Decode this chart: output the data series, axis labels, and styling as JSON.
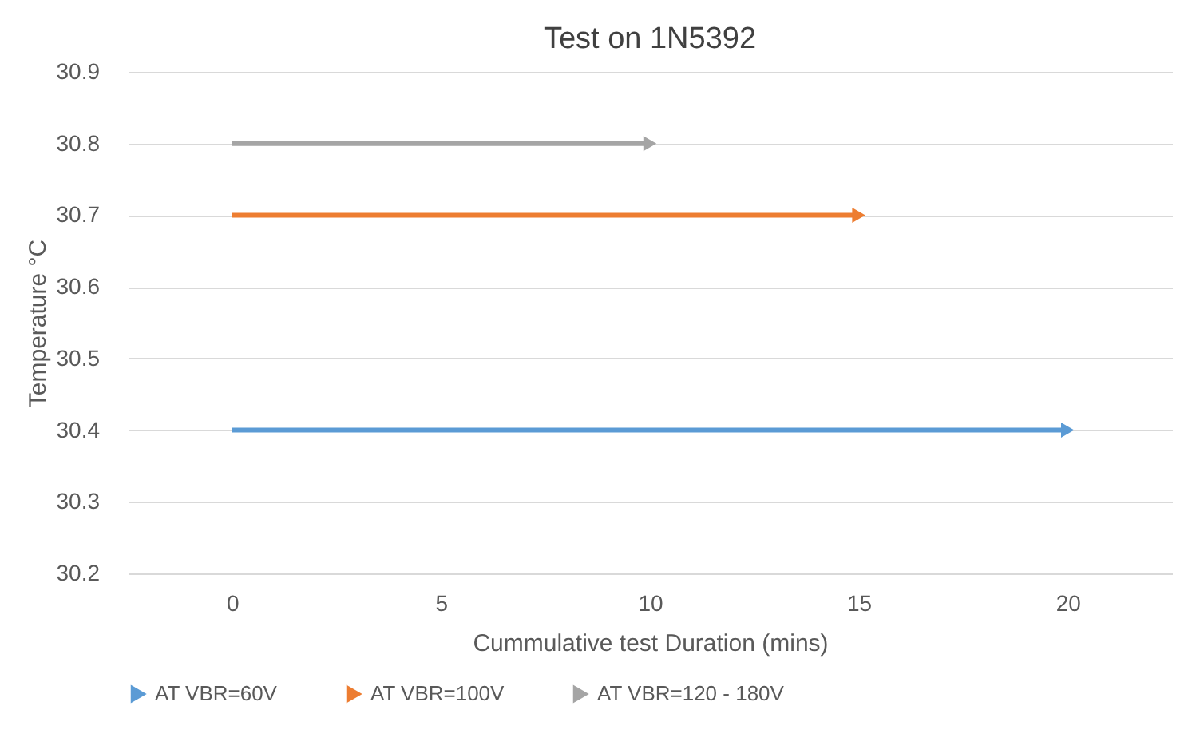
{
  "chart_data": {
    "type": "line",
    "title": "Test on 1N5392",
    "xlabel": "Cummulative test Duration (mins)",
    "ylabel": "Temperature °C",
    "series": [
      {
        "name": "AT VBR=60V",
        "color": "#5b9bd5",
        "x": [
          0,
          20
        ],
        "values": [
          30.4,
          30.4
        ]
      },
      {
        "name": "AT VBR=100V",
        "color": "#ed7d31",
        "x": [
          0,
          15
        ],
        "values": [
          30.7,
          30.7
        ]
      },
      {
        "name": "AT VBR=120 - 180V",
        "color": "#a5a5a5",
        "x": [
          0,
          10
        ],
        "values": [
          30.8,
          30.8
        ]
      }
    ],
    "xlim": [
      -2.5,
      22.5
    ],
    "xticks": [
      0,
      5,
      10,
      15,
      20
    ],
    "ylim": [
      30.2,
      30.9
    ],
    "yticks": [
      30.2,
      30.3,
      30.4,
      30.5,
      30.6,
      30.7,
      30.8,
      30.9
    ],
    "grid": "y",
    "legend": "bottom",
    "marker": "triangle",
    "line_style": "solid"
  }
}
